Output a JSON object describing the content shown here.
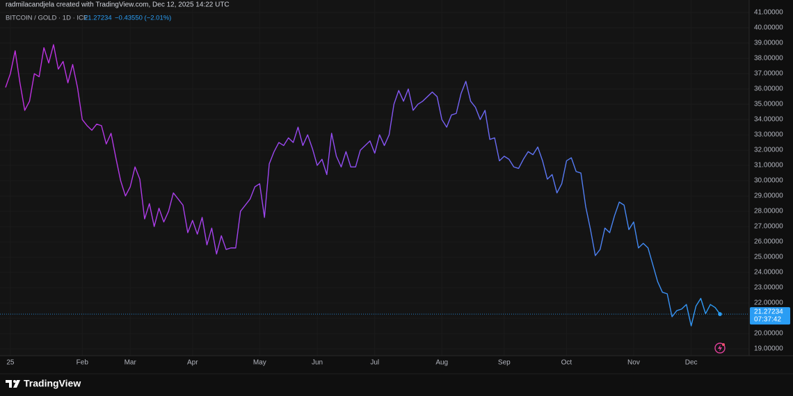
{
  "header": {
    "credit": "radmilacandjela created with TradingView.com, Dec 12, 2025 14:22 UTC",
    "brand": "TradingView"
  },
  "chart_data": {
    "type": "line",
    "title": "BITCOIN / GOLD · 1D · ICE",
    "change": "−0.43550 (−2.01%)",
    "countdown": "07:37:42",
    "line_colors": [
      "#c42fe0",
      "#8f4ff5",
      "#2a9df4"
    ],
    "grid": true,
    "categories": [
      null,
      "25",
      null,
      null,
      null,
      null,
      null,
      null,
      null,
      null,
      null,
      null,
      null,
      null,
      null,
      null,
      "Feb",
      null,
      null,
      null,
      null,
      null,
      null,
      null,
      null,
      null,
      "Mar",
      null,
      null,
      null,
      null,
      null,
      null,
      null,
      null,
      null,
      null,
      null,
      null,
      "Apr",
      null,
      null,
      null,
      null,
      null,
      null,
      null,
      null,
      null,
      null,
      null,
      null,
      null,
      "May",
      null,
      null,
      null,
      null,
      null,
      null,
      null,
      null,
      null,
      null,
      null,
      "Jun",
      null,
      null,
      null,
      null,
      null,
      null,
      null,
      null,
      null,
      null,
      null,
      "Jul",
      null,
      null,
      null,
      null,
      null,
      null,
      null,
      null,
      null,
      null,
      null,
      null,
      null,
      "Aug",
      null,
      null,
      null,
      null,
      null,
      null,
      null,
      null,
      null,
      null,
      null,
      null,
      "Sep",
      null,
      null,
      null,
      null,
      null,
      null,
      null,
      null,
      null,
      null,
      null,
      null,
      "Oct",
      null,
      null,
      null,
      null,
      null,
      null,
      null,
      null,
      null,
      null,
      null,
      null,
      null,
      "Nov",
      null,
      null,
      null,
      null,
      null,
      null,
      null,
      null,
      null,
      null,
      null,
      "Dec",
      null,
      null,
      null,
      null,
      null,
      null
    ],
    "values": [
      36.1,
      37.0,
      38.5,
      36.4,
      34.6,
      35.2,
      37.0,
      36.8,
      38.7,
      37.7,
      38.9,
      37.3,
      37.8,
      36.4,
      37.6,
      36.1,
      34.0,
      33.6,
      33.3,
      33.7,
      33.6,
      32.4,
      33.1,
      31.5,
      30.0,
      29.0,
      29.6,
      30.9,
      30.1,
      27.5,
      28.5,
      27.0,
      28.2,
      27.3,
      28.0,
      29.2,
      28.8,
      28.4,
      26.6,
      27.4,
      26.5,
      27.6,
      25.8,
      26.9,
      25.2,
      26.4,
      25.5,
      25.6,
      25.6,
      28.0,
      28.4,
      28.8,
      29.6,
      29.8,
      27.6,
      31.1,
      31.9,
      32.5,
      32.3,
      32.8,
      32.5,
      33.5,
      32.3,
      33.0,
      32.1,
      31.0,
      31.4,
      30.4,
      33.1,
      31.6,
      30.9,
      31.9,
      30.9,
      30.9,
      32.0,
      32.3,
      32.6,
      31.8,
      33.0,
      32.3,
      33.0,
      35.0,
      35.9,
      35.2,
      36.0,
      34.6,
      35.0,
      35.2,
      35.5,
      35.8,
      35.5,
      34.0,
      33.5,
      34.3,
      34.4,
      35.7,
      36.5,
      35.2,
      34.8,
      34.0,
      34.6,
      32.7,
      32.8,
      31.3,
      31.6,
      31.4,
      30.9,
      30.8,
      31.4,
      31.9,
      31.7,
      32.2,
      31.3,
      30.1,
      30.4,
      29.2,
      29.8,
      31.3,
      31.5,
      30.6,
      30.5,
      28.3,
      26.8,
      25.1,
      25.5,
      26.9,
      26.6,
      27.7,
      28.6,
      28.4,
      26.8,
      27.3,
      25.6,
      25.9,
      25.6,
      24.5,
      23.4,
      22.7,
      22.6,
      21.1,
      21.5,
      21.6,
      21.9,
      20.5,
      21.8,
      22.3,
      21.3,
      21.9,
      21.7,
      21.27234
    ],
    "ylim": [
      18.55,
      41.82
    ],
    "yticks": [
      {
        "value": 19,
        "label": "19.00000"
      },
      {
        "value": 20,
        "label": "20.00000"
      },
      {
        "value": 21,
        "label": "21.00000"
      },
      {
        "value": 22,
        "label": "22.00000"
      },
      {
        "value": 23,
        "label": "23.00000"
      },
      {
        "value": 24,
        "label": "24.00000"
      },
      {
        "value": 25,
        "label": "25.00000"
      },
      {
        "value": 26,
        "label": "26.00000"
      },
      {
        "value": 27,
        "label": "27.00000"
      },
      {
        "value": 28,
        "label": "28.00000"
      },
      {
        "value": 29,
        "label": "29.00000"
      },
      {
        "value": 30,
        "label": "30.00000"
      },
      {
        "value": 31,
        "label": "31.00000"
      },
      {
        "value": 32,
        "label": "32.00000"
      },
      {
        "value": 33,
        "label": "33.00000"
      },
      {
        "value": 34,
        "label": "34.00000"
      },
      {
        "value": 35,
        "label": "35.00000"
      },
      {
        "value": 36,
        "label": "36.00000"
      },
      {
        "value": 37,
        "label": "37.00000"
      },
      {
        "value": 38,
        "label": "38.00000"
      },
      {
        "value": 39,
        "label": "39.00000"
      },
      {
        "value": 40,
        "label": "40.00000"
      },
      {
        "value": 41,
        "label": "41.00000"
      }
    ]
  }
}
